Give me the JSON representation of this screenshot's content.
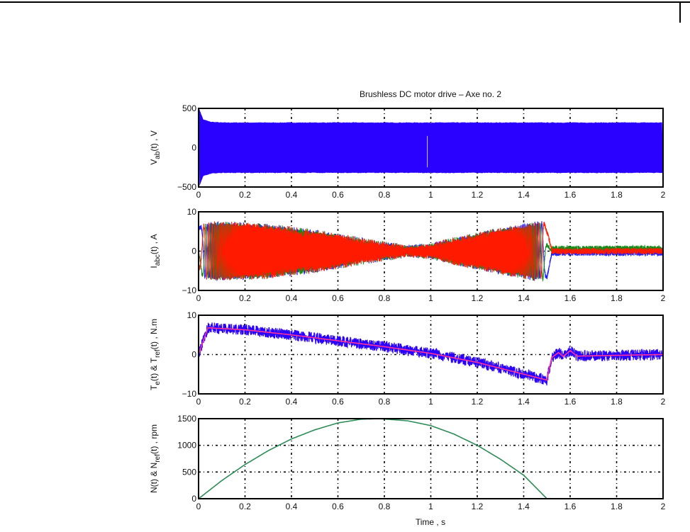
{
  "chart_data": [
    {
      "type": "line",
      "title": "Brushless DC motor drive – Axe no. 2",
      "ylabel_parts": [
        {
          "t": "V"
        },
        {
          "t": "ab",
          "sub": true
        },
        {
          "t": "(t) , V"
        }
      ],
      "xlabel": "",
      "xlim": [
        0,
        2
      ],
      "ylim": [
        -500,
        500
      ],
      "xticks": [
        "0",
        "0.2",
        "0.4",
        "0.6",
        "0.8",
        "1",
        "1.2",
        "1.4",
        "1.6",
        "1.8",
        "2"
      ],
      "yticks": [
        {
          "v": -500,
          "label": "−500"
        },
        {
          "v": 0,
          "label": "0"
        },
        {
          "v": 500,
          "label": "500"
        }
      ],
      "grid": true,
      "series": [
        {
          "name": "Vab",
          "color": "#2a00ff",
          "envelope": {
            "t": [
              0,
              0.005,
              0.02,
              0.05,
              0.1,
              2
            ],
            "max": [
              500,
              480,
              360,
              330,
              320,
              320
            ]
          }
        }
      ]
    },
    {
      "type": "line",
      "ylabel_parts": [
        {
          "t": "I"
        },
        {
          "t": "abc",
          "sub": true
        },
        {
          "t": "(t) , A"
        }
      ],
      "xlim": [
        0,
        2
      ],
      "ylim": [
        -10,
        10
      ],
      "xticks": [
        "0",
        "0.2",
        "0.4",
        "0.6",
        "0.8",
        "1",
        "1.2",
        "1.4",
        "1.6",
        "1.8",
        "2"
      ],
      "yticks": [
        {
          "v": -10,
          "label": "−10"
        },
        {
          "v": 0,
          "label": "0"
        },
        {
          "v": 10,
          "label": "10"
        }
      ],
      "grid": true,
      "envelope": {
        "t": [
          0,
          0.05,
          0.1,
          0.3,
          0.5,
          0.7,
          0.9,
          1.0,
          1.1,
          1.3,
          1.45,
          1.5,
          1.52,
          2
        ],
        "amp": [
          6,
          7,
          7,
          6.5,
          5,
          3,
          1,
          1.5,
          3,
          5.5,
          7,
          7,
          0.8,
          0.8
        ]
      },
      "series": [
        {
          "name": "Ia",
          "color": "#2020ff"
        },
        {
          "name": "Ib",
          "color": "#1a8a1a"
        },
        {
          "name": "Ic",
          "color": "#ff1a00"
        }
      ]
    },
    {
      "type": "line",
      "ylabel_parts": [
        {
          "t": "T"
        },
        {
          "t": "e",
          "sub": true
        },
        {
          "t": "(t) & T"
        },
        {
          "t": "ref",
          "sub": true
        },
        {
          "t": "(t) , N.m"
        }
      ],
      "xlim": [
        0,
        2
      ],
      "ylim": [
        -10,
        10
      ],
      "xticks": [
        "0",
        "0.2",
        "0.4",
        "0.6",
        "0.8",
        "1",
        "1.2",
        "1.4",
        "1.6",
        "1.8",
        "2"
      ],
      "yticks": [
        {
          "v": -10,
          "label": "−10"
        },
        {
          "v": 0,
          "label": "0"
        },
        {
          "v": 10,
          "label": "10"
        }
      ],
      "grid": true,
      "series": [
        {
          "name": "Te",
          "color": "#2a00ff",
          "noise": 1.4
        },
        {
          "name": "Tref",
          "color": "#ff3399",
          "x": [
            0,
            0.04,
            0.2,
            0.4,
            0.6,
            0.8,
            1.0,
            1.2,
            1.4,
            1.5,
            1.52,
            1.55,
            1.57,
            1.6,
            1.63,
            1.8,
            2
          ],
          "y": [
            0,
            6.8,
            6.3,
            5,
            3.5,
            2,
            0.3,
            -2,
            -5,
            -6.5,
            -0.8,
            0.5,
            -0.5,
            1,
            -0.4,
            -0.2,
            0
          ]
        }
      ]
    },
    {
      "type": "line",
      "ylabel_parts": [
        {
          "t": "N(t) & N"
        },
        {
          "t": "ref",
          "sub": true
        },
        {
          "t": "(t) , rpm"
        }
      ],
      "xlabel": "Time , s",
      "xlim": [
        0,
        2
      ],
      "ylim": [
        0,
        1500
      ],
      "xticks": [
        "0",
        "0.2",
        "0.4",
        "0.6",
        "0.8",
        "1",
        "1.2",
        "1.4",
        "1.6",
        "1.8",
        "2"
      ],
      "yticks": [
        {
          "v": 0,
          "label": "0"
        },
        {
          "v": 500,
          "label": "500"
        },
        {
          "v": 1000,
          "label": "1000"
        },
        {
          "v": 1500,
          "label": "1500"
        }
      ],
      "grid": true,
      "series": [
        {
          "name": "N",
          "color": "#2e8b57",
          "x": [
            0,
            0.1,
            0.2,
            0.3,
            0.4,
            0.5,
            0.6,
            0.7,
            0.78,
            0.9,
            1.0,
            1.1,
            1.2,
            1.3,
            1.4,
            1.5,
            1.6,
            2
          ],
          "y": [
            0,
            340,
            640,
            900,
            1120,
            1290,
            1420,
            1490,
            1500,
            1460,
            1370,
            1210,
            1000,
            740,
            440,
            0,
            0,
            0
          ]
        }
      ]
    }
  ]
}
